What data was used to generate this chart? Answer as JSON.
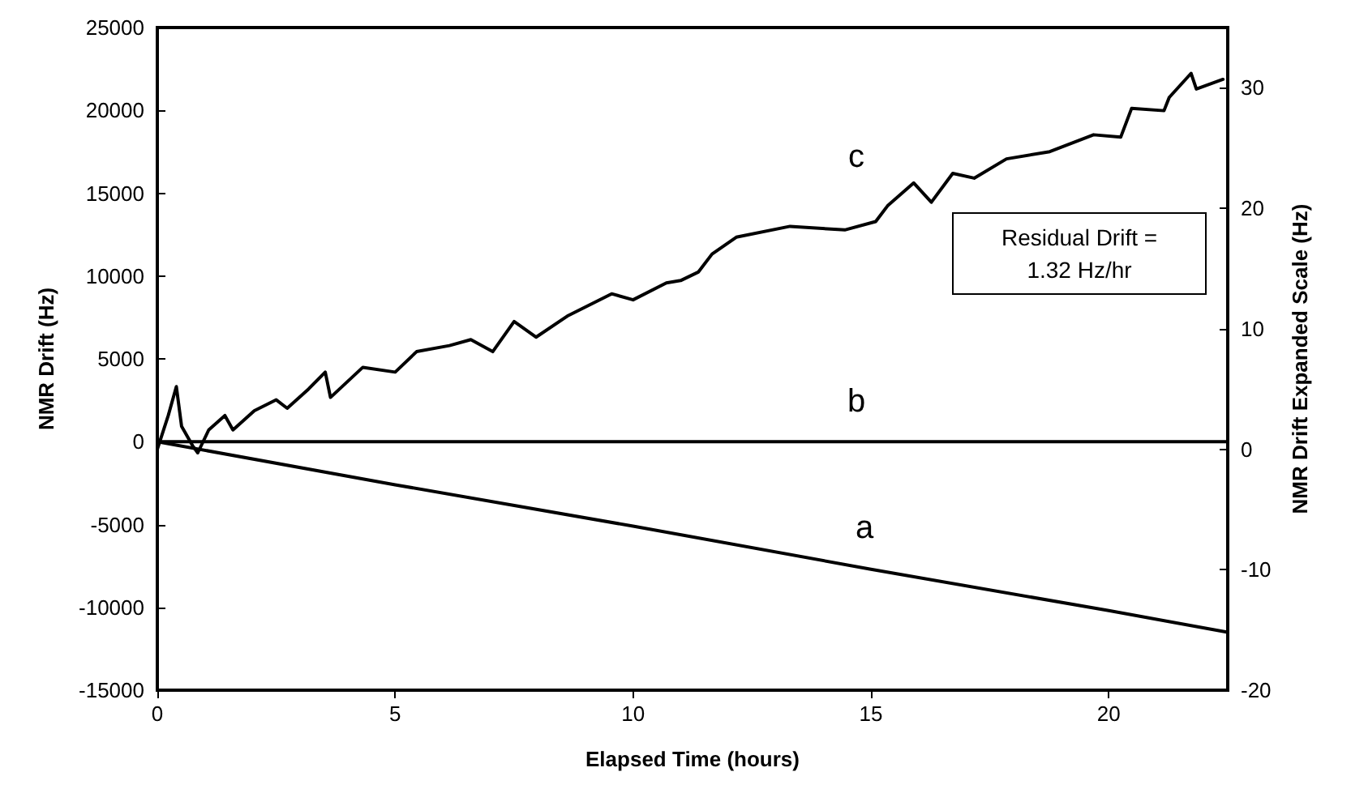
{
  "chart_data": {
    "type": "line",
    "xlabel": "Elapsed Time (hours)",
    "ylabel": "NMR Drift (Hz)",
    "y2label": "NMR Drift Expanded Scale (Hz)",
    "xlim": [
      0,
      22.5
    ],
    "xticks": [
      0,
      5,
      10,
      15,
      20
    ],
    "ylim": [
      -15000,
      25000
    ],
    "yticks": [
      -15000,
      -10000,
      -5000,
      0,
      5000,
      10000,
      15000,
      20000,
      25000
    ],
    "y2lim": [
      -20,
      35
    ],
    "y2ticks": [
      -20,
      -10,
      0,
      10,
      20,
      30
    ],
    "grid": false,
    "legend": false,
    "marker": "none",
    "line_style": "solid",
    "series": [
      {
        "color": "#000000",
        "x": [
          0,
          5,
          10,
          15,
          20,
          22.5
        ],
        "values": [
          0,
          -2600,
          -5100,
          -7700,
          -10200,
          -11500
        ]
      },
      {
        "color": "#000000",
        "x": [
          0,
          22.5
        ],
        "values": [
          0,
          0
        ]
      },
      {
        "color": "#000000",
        "axis": "y2",
        "x": [
          0,
          0.23,
          0.4,
          0.51,
          0.74,
          0.85,
          1.08,
          1.42,
          1.59,
          2.04,
          2.5,
          2.73,
          3.18,
          3.53,
          3.64,
          4.32,
          5.0,
          5.45,
          6.14,
          6.59,
          7.05,
          7.5,
          7.96,
          8.64,
          9.55,
          10.0,
          10.7,
          11.0,
          11.37,
          11.66,
          12.17,
          13.3,
          14.45,
          15.1,
          15.35,
          15.9,
          16.27,
          16.72,
          17.17,
          17.85,
          18.76,
          19.68,
          20.25,
          20.48,
          21.16,
          21.27,
          21.73,
          21.84,
          22.4
        ],
        "values": [
          0,
          2.8,
          5.2,
          1.9,
          0.3,
          -0.3,
          1.6,
          2.8,
          1.6,
          3.2,
          4.1,
          3.4,
          5.0,
          6.4,
          4.3,
          6.8,
          6.4,
          8.1,
          8.6,
          9.1,
          8.1,
          10.6,
          9.3,
          11.1,
          12.9,
          12.4,
          13.8,
          14.0,
          14.7,
          16.2,
          17.6,
          18.5,
          18.2,
          18.9,
          20.2,
          22.1,
          20.5,
          22.9,
          22.5,
          24.1,
          24.7,
          26.1,
          25.9,
          28.3,
          28.1,
          29.2,
          31.2,
          29.9,
          30.7
        ]
      }
    ],
    "annotations": [
      "c",
      "b",
      "a",
      "Residual Drift =\n1.32 Hz/hr"
    ]
  }
}
